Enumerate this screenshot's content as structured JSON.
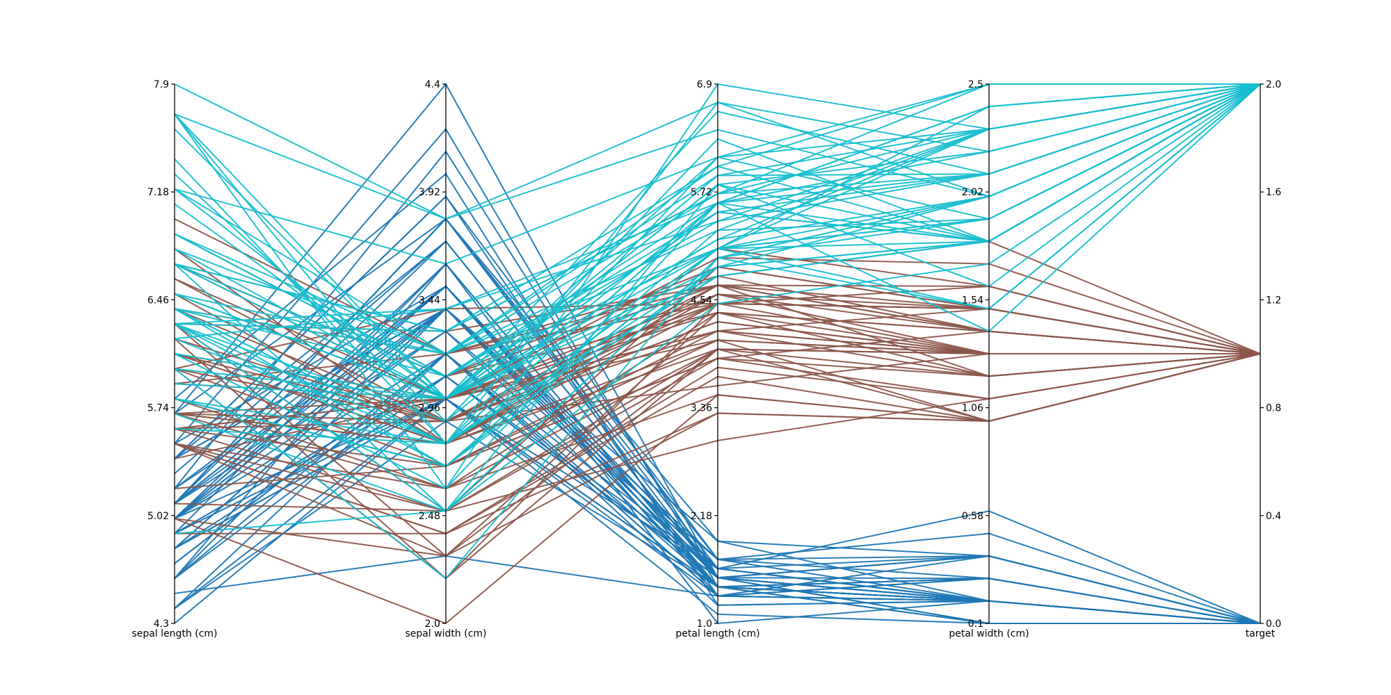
{
  "chart_data": {
    "type": "parallel_coordinates",
    "dimensions": [
      {
        "name": "sepal length (cm)",
        "ticks": [
          "4.3",
          "5.02",
          "5.74",
          "6.46",
          "7.18",
          "7.9"
        ],
        "range": [
          4.3,
          7.9
        ]
      },
      {
        "name": "sepal width (cm)",
        "ticks": [
          "2.0",
          "2.48",
          "2.96",
          "3.44",
          "3.92",
          "4.4"
        ],
        "range": [
          2.0,
          4.4
        ]
      },
      {
        "name": "petal length (cm)",
        "ticks": [
          "1.0",
          "2.18",
          "3.36",
          "4.54",
          "5.72",
          "6.9"
        ],
        "range": [
          1.0,
          6.9
        ]
      },
      {
        "name": "petal width (cm)",
        "ticks": [
          "0.1",
          "0.58",
          "1.06",
          "1.54",
          "2.02",
          "2.5"
        ],
        "range": [
          0.1,
          2.5
        ]
      },
      {
        "name": "target",
        "ticks": [
          "0.0",
          "0.4",
          "0.8",
          "1.2",
          "1.6",
          "2.0"
        ],
        "range": [
          0.0,
          2.0
        ],
        "side": "right"
      }
    ],
    "class_colors": {
      "0": "#1f77b4",
      "1": "#8c564b",
      "2": "#17becf"
    },
    "series": [
      {
        "target": 0,
        "rows": [
          [
            5.1,
            3.5,
            1.4,
            0.2
          ],
          [
            4.9,
            3.0,
            1.4,
            0.2
          ],
          [
            4.7,
            3.2,
            1.3,
            0.2
          ],
          [
            4.6,
            3.1,
            1.5,
            0.2
          ],
          [
            5.0,
            3.6,
            1.4,
            0.2
          ],
          [
            5.4,
            3.9,
            1.7,
            0.4
          ],
          [
            4.6,
            3.4,
            1.4,
            0.3
          ],
          [
            5.0,
            3.4,
            1.5,
            0.2
          ],
          [
            4.4,
            2.9,
            1.4,
            0.2
          ],
          [
            4.9,
            3.1,
            1.5,
            0.1
          ],
          [
            5.4,
            3.7,
            1.5,
            0.2
          ],
          [
            4.8,
            3.4,
            1.6,
            0.2
          ],
          [
            4.8,
            3.0,
            1.4,
            0.1
          ],
          [
            4.3,
            3.0,
            1.1,
            0.1
          ],
          [
            5.8,
            4.0,
            1.2,
            0.2
          ],
          [
            5.7,
            4.4,
            1.5,
            0.4
          ],
          [
            5.4,
            3.9,
            1.3,
            0.4
          ],
          [
            5.1,
            3.5,
            1.4,
            0.3
          ],
          [
            5.7,
            3.8,
            1.7,
            0.3
          ],
          [
            5.1,
            3.8,
            1.5,
            0.3
          ],
          [
            5.4,
            3.4,
            1.7,
            0.2
          ],
          [
            5.1,
            3.7,
            1.5,
            0.4
          ],
          [
            4.6,
            3.6,
            1.0,
            0.2
          ],
          [
            5.1,
            3.3,
            1.7,
            0.5
          ],
          [
            4.8,
            3.4,
            1.9,
            0.2
          ],
          [
            5.0,
            3.0,
            1.6,
            0.2
          ],
          [
            5.0,
            3.4,
            1.6,
            0.4
          ],
          [
            5.2,
            3.5,
            1.5,
            0.2
          ],
          [
            5.2,
            3.4,
            1.4,
            0.2
          ],
          [
            4.7,
            3.2,
            1.6,
            0.2
          ],
          [
            4.8,
            3.1,
            1.6,
            0.2
          ],
          [
            5.4,
            3.4,
            1.5,
            0.4
          ],
          [
            5.2,
            4.1,
            1.5,
            0.1
          ],
          [
            5.5,
            4.2,
            1.4,
            0.2
          ],
          [
            4.9,
            3.1,
            1.5,
            0.2
          ],
          [
            5.0,
            3.2,
            1.2,
            0.2
          ],
          [
            5.5,
            3.5,
            1.3,
            0.2
          ],
          [
            4.9,
            3.6,
            1.4,
            0.1
          ],
          [
            4.4,
            3.0,
            1.3,
            0.2
          ],
          [
            5.1,
            3.4,
            1.5,
            0.2
          ],
          [
            5.0,
            3.5,
            1.3,
            0.3
          ],
          [
            4.5,
            2.3,
            1.3,
            0.3
          ],
          [
            4.4,
            3.2,
            1.3,
            0.2
          ],
          [
            5.0,
            3.5,
            1.6,
            0.6
          ],
          [
            5.1,
            3.8,
            1.9,
            0.4
          ],
          [
            4.8,
            3.0,
            1.4,
            0.3
          ],
          [
            5.1,
            3.8,
            1.6,
            0.2
          ],
          [
            4.6,
            3.2,
            1.4,
            0.2
          ],
          [
            5.3,
            3.7,
            1.5,
            0.2
          ],
          [
            5.0,
            3.3,
            1.4,
            0.2
          ]
        ]
      },
      {
        "target": 1,
        "rows": [
          [
            7.0,
            3.2,
            4.7,
            1.4
          ],
          [
            6.4,
            3.2,
            4.5,
            1.5
          ],
          [
            6.9,
            3.1,
            4.9,
            1.5
          ],
          [
            5.5,
            2.3,
            4.0,
            1.3
          ],
          [
            6.5,
            2.8,
            4.6,
            1.5
          ],
          [
            5.7,
            2.8,
            4.5,
            1.3
          ],
          [
            6.3,
            3.3,
            4.7,
            1.6
          ],
          [
            4.9,
            2.4,
            3.3,
            1.0
          ],
          [
            6.6,
            2.9,
            4.6,
            1.3
          ],
          [
            5.2,
            2.7,
            3.9,
            1.4
          ],
          [
            5.0,
            2.0,
            3.5,
            1.0
          ],
          [
            5.9,
            3.0,
            4.2,
            1.5
          ],
          [
            6.0,
            2.2,
            4.0,
            1.0
          ],
          [
            6.1,
            2.9,
            4.7,
            1.4
          ],
          [
            5.6,
            2.9,
            3.6,
            1.3
          ],
          [
            6.7,
            3.1,
            4.4,
            1.4
          ],
          [
            5.6,
            3.0,
            4.5,
            1.5
          ],
          [
            5.8,
            2.7,
            4.1,
            1.0
          ],
          [
            6.2,
            2.2,
            4.5,
            1.5
          ],
          [
            5.6,
            2.5,
            3.9,
            1.1
          ],
          [
            5.9,
            3.2,
            4.8,
            1.8
          ],
          [
            6.1,
            2.8,
            4.0,
            1.3
          ],
          [
            6.3,
            2.5,
            4.9,
            1.5
          ],
          [
            6.1,
            2.8,
            4.7,
            1.2
          ],
          [
            6.4,
            2.9,
            4.3,
            1.3
          ],
          [
            6.6,
            3.0,
            4.4,
            1.4
          ],
          [
            6.8,
            2.8,
            4.8,
            1.4
          ],
          [
            6.7,
            3.0,
            5.0,
            1.7
          ],
          [
            6.0,
            2.9,
            4.5,
            1.5
          ],
          [
            5.7,
            2.6,
            3.5,
            1.0
          ],
          [
            5.5,
            2.4,
            3.8,
            1.1
          ],
          [
            5.5,
            2.4,
            3.7,
            1.0
          ],
          [
            5.8,
            2.7,
            3.9,
            1.2
          ],
          [
            6.0,
            2.7,
            5.1,
            1.6
          ],
          [
            5.4,
            3.0,
            4.5,
            1.5
          ],
          [
            6.0,
            3.4,
            4.5,
            1.6
          ],
          [
            6.7,
            3.1,
            4.7,
            1.5
          ],
          [
            6.3,
            2.3,
            4.4,
            1.3
          ],
          [
            5.6,
            3.0,
            4.1,
            1.3
          ],
          [
            5.5,
            2.5,
            4.0,
            1.3
          ],
          [
            5.5,
            2.6,
            4.4,
            1.2
          ],
          [
            6.1,
            3.0,
            4.6,
            1.4
          ],
          [
            5.8,
            2.6,
            4.0,
            1.2
          ],
          [
            5.0,
            2.3,
            3.3,
            1.0
          ],
          [
            5.6,
            2.7,
            4.2,
            1.3
          ],
          [
            5.7,
            3.0,
            4.2,
            1.2
          ],
          [
            5.7,
            2.9,
            4.2,
            1.3
          ],
          [
            6.2,
            2.9,
            4.3,
            1.3
          ],
          [
            5.1,
            2.5,
            3.0,
            1.1
          ],
          [
            5.7,
            2.8,
            4.1,
            1.3
          ]
        ]
      },
      {
        "target": 2,
        "rows": [
          [
            6.3,
            3.3,
            6.0,
            2.5
          ],
          [
            5.8,
            2.7,
            5.1,
            1.9
          ],
          [
            7.1,
            3.0,
            5.9,
            2.1
          ],
          [
            6.3,
            2.9,
            5.6,
            1.8
          ],
          [
            6.5,
            3.0,
            5.8,
            2.2
          ],
          [
            7.6,
            3.0,
            6.6,
            2.1
          ],
          [
            4.9,
            2.5,
            4.5,
            1.7
          ],
          [
            7.3,
            2.9,
            6.3,
            1.8
          ],
          [
            6.7,
            2.5,
            5.8,
            1.8
          ],
          [
            7.2,
            3.6,
            6.1,
            2.5
          ],
          [
            6.5,
            3.2,
            5.1,
            2.0
          ],
          [
            6.4,
            2.7,
            5.3,
            1.9
          ],
          [
            6.8,
            3.0,
            5.5,
            2.1
          ],
          [
            5.7,
            2.5,
            5.0,
            2.0
          ],
          [
            5.8,
            2.8,
            5.1,
            2.4
          ],
          [
            6.4,
            3.2,
            5.3,
            2.3
          ],
          [
            6.5,
            3.0,
            5.5,
            1.8
          ],
          [
            7.7,
            3.8,
            6.7,
            2.2
          ],
          [
            7.7,
            2.6,
            6.9,
            2.3
          ],
          [
            6.0,
            2.2,
            5.0,
            1.5
          ],
          [
            6.9,
            3.2,
            5.7,
            2.3
          ],
          [
            5.6,
            2.8,
            4.9,
            2.0
          ],
          [
            7.7,
            2.8,
            6.7,
            2.0
          ],
          [
            6.3,
            2.7,
            4.9,
            1.8
          ],
          [
            6.7,
            3.3,
            5.7,
            2.1
          ],
          [
            7.2,
            3.2,
            6.0,
            1.8
          ],
          [
            6.2,
            2.8,
            4.8,
            1.8
          ],
          [
            6.1,
            3.0,
            4.9,
            1.8
          ],
          [
            6.4,
            2.8,
            5.6,
            2.1
          ],
          [
            7.2,
            3.0,
            5.8,
            1.6
          ],
          [
            7.4,
            2.8,
            6.1,
            1.9
          ],
          [
            7.9,
            3.8,
            6.4,
            2.0
          ],
          [
            6.4,
            2.8,
            5.6,
            2.2
          ],
          [
            6.3,
            2.8,
            5.1,
            1.5
          ],
          [
            6.1,
            2.6,
            5.6,
            1.4
          ],
          [
            7.7,
            3.0,
            6.1,
            2.3
          ],
          [
            6.3,
            3.4,
            5.6,
            2.4
          ],
          [
            6.4,
            3.1,
            5.5,
            1.8
          ],
          [
            6.0,
            3.0,
            4.8,
            1.8
          ],
          [
            6.9,
            3.1,
            5.4,
            2.1
          ],
          [
            6.7,
            3.1,
            5.6,
            2.4
          ],
          [
            6.9,
            3.1,
            5.1,
            2.3
          ],
          [
            5.8,
            2.7,
            5.1,
            1.9
          ],
          [
            6.8,
            3.2,
            5.9,
            2.3
          ],
          [
            6.7,
            3.3,
            5.7,
            2.5
          ],
          [
            6.7,
            3.0,
            5.2,
            2.3
          ],
          [
            6.3,
            2.5,
            5.0,
            1.9
          ],
          [
            6.5,
            3.0,
            5.2,
            2.0
          ],
          [
            6.2,
            3.4,
            5.4,
            2.3
          ],
          [
            5.9,
            3.0,
            5.1,
            1.8
          ]
        ]
      }
    ]
  }
}
